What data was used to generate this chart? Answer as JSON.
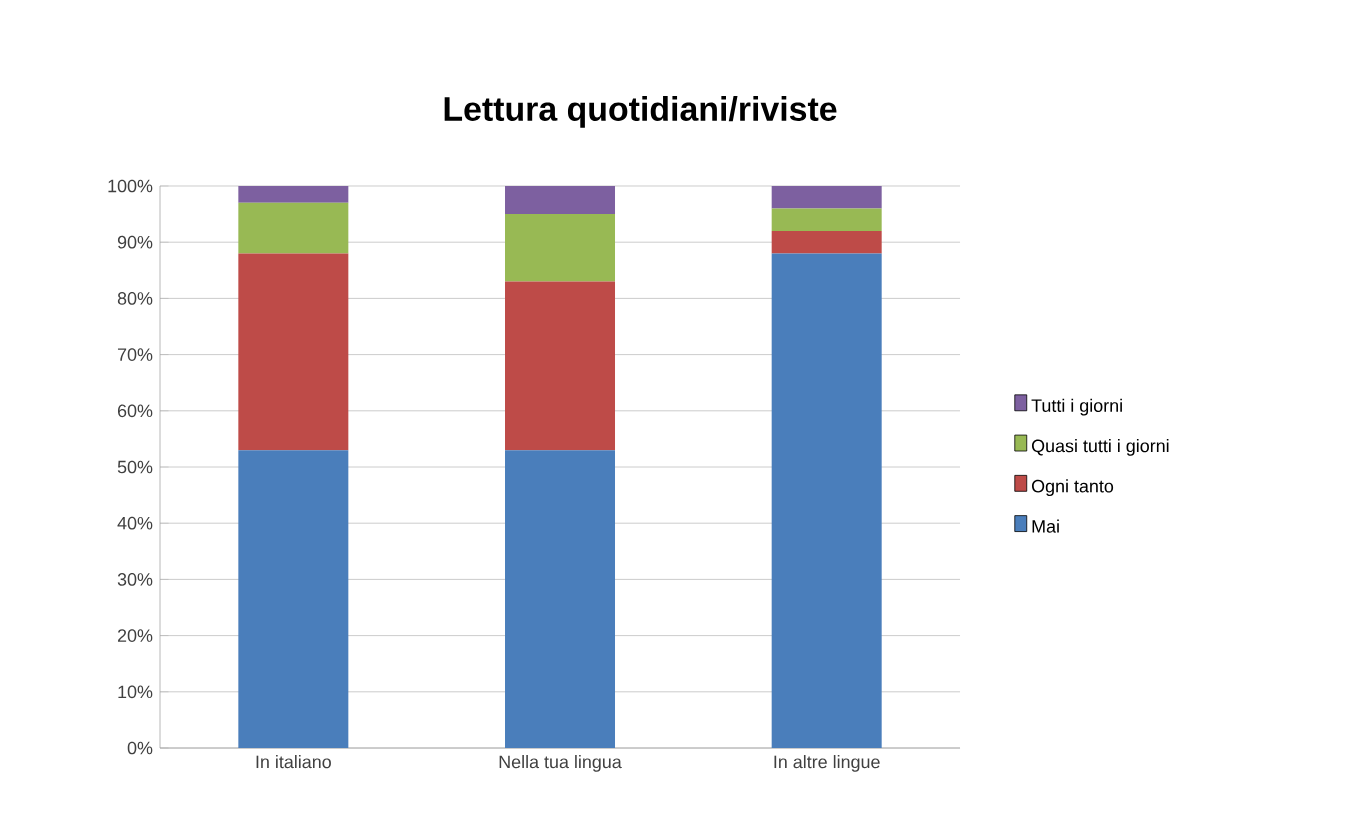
{
  "chart_data": {
    "type": "bar",
    "stacked": true,
    "title": "Lettura quotidiani/riviste",
    "categories": [
      "In italiano",
      "Nella tua lingua",
      "In altre lingue"
    ],
    "series": [
      {
        "name": "Mai",
        "color": "#4a7ebb",
        "values": [
          53,
          53,
          88
        ]
      },
      {
        "name": "Ogni tanto",
        "color": "#be4b48",
        "values": [
          35,
          30,
          4
        ]
      },
      {
        "name": "Quasi tutti i giorni",
        "color": "#98b954",
        "values": [
          9,
          12,
          4
        ]
      },
      {
        "name": "Tutti i giorni",
        "color": "#7d60a0",
        "values": [
          3,
          5,
          4
        ]
      }
    ],
    "ylim": [
      0,
      100
    ],
    "yticks": [
      {
        "value": 0,
        "label": "0%"
      },
      {
        "value": 10,
        "label": "10%"
      },
      {
        "value": 20,
        "label": "20%"
      },
      {
        "value": 30,
        "label": "30%"
      },
      {
        "value": 40,
        "label": "40%"
      },
      {
        "value": 50,
        "label": "50%"
      },
      {
        "value": 60,
        "label": "60%"
      },
      {
        "value": 70,
        "label": "70%"
      },
      {
        "value": 80,
        "label": "80%"
      },
      {
        "value": 90,
        "label": "90%"
      },
      {
        "value": 100,
        "label": "100%"
      }
    ],
    "grid": "y",
    "legend": "right"
  }
}
